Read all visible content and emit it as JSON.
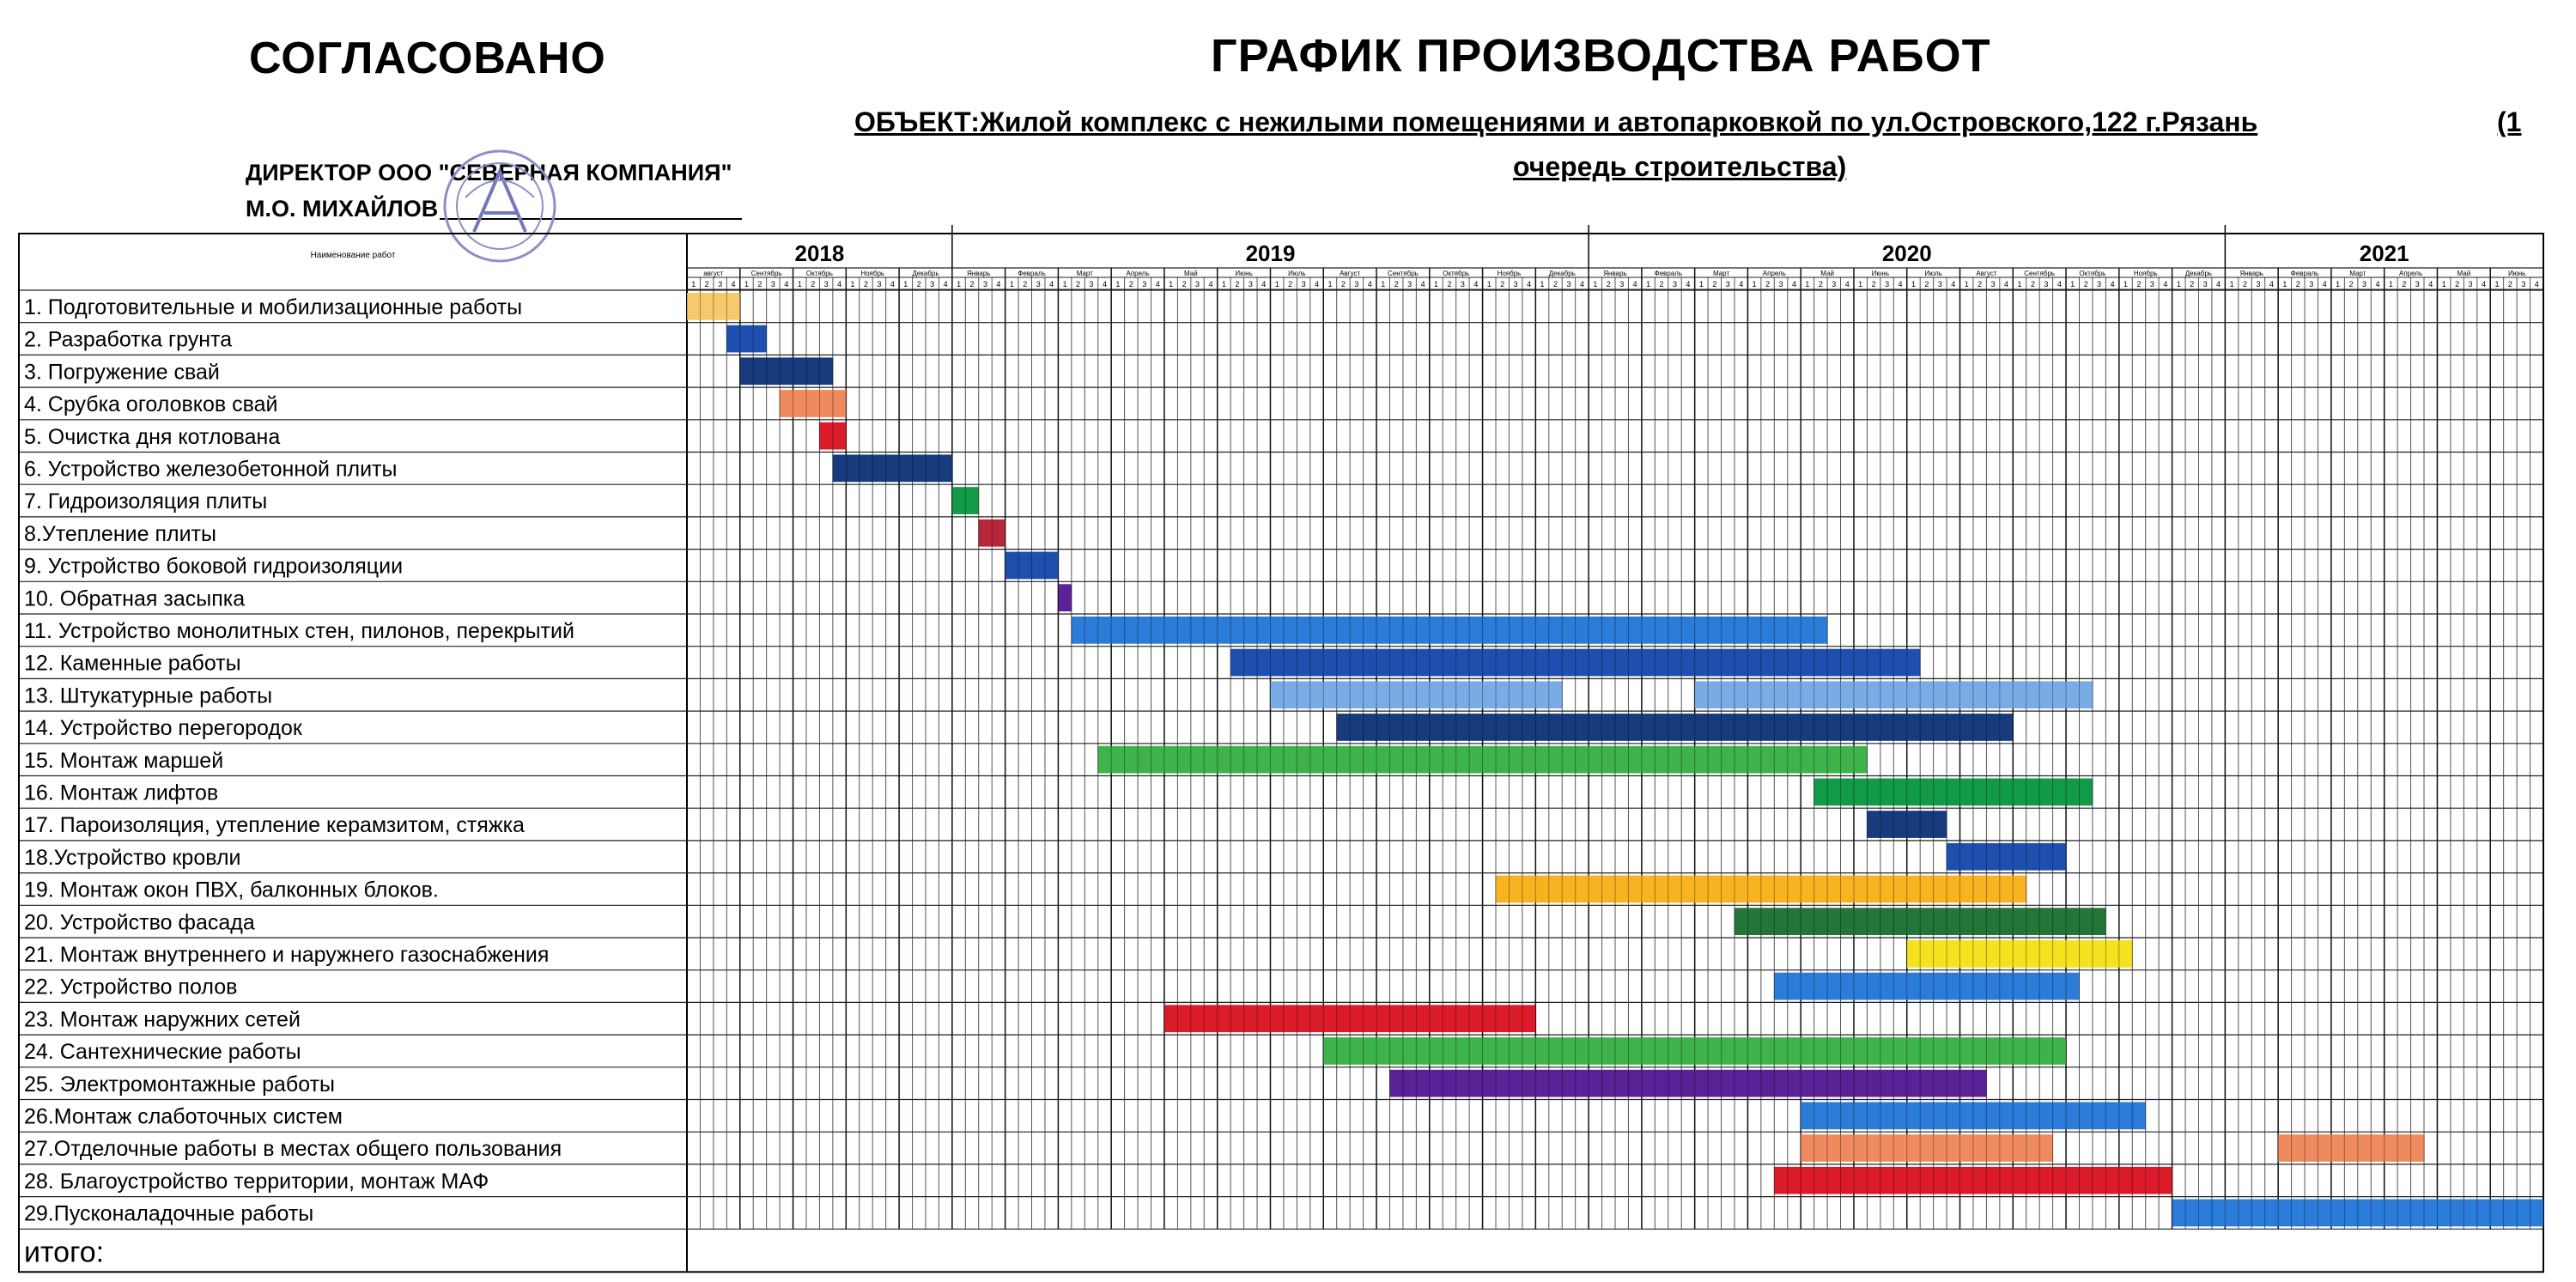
{
  "header": {
    "approved": "СОГЛАСОВАНО",
    "title": "ГРАФИК ПРОИЗВОДСТВА РАБОТ",
    "object_line1": "ОБЪЕКТ:Жилой комплекс с нежилыми помещениями и автопарковкой по ул.Островского,122 г.Рязань",
    "object_suffix": "(1",
    "object_line2": "очередь строительства)",
    "director": "ДИРЕКТОР ООО \"СЕВЕРНАЯ КОМПАНИЯ\"",
    "signer": "М.О. МИХАЙЛОВ",
    "stamp_icon": "stamp-icon"
  },
  "table": {
    "name_header": "Наименование работ",
    "total_label": "итого:"
  },
  "chart_data": {
    "type": "table",
    "years": [
      {
        "label": "2018",
        "months": 5
      },
      {
        "label": "2019",
        "months": 12
      },
      {
        "label": "2020",
        "months": 12
      },
      {
        "label": "2021",
        "months": 6
      }
    ],
    "months": [
      "август",
      "Сентябрь",
      "Октябрь",
      "Ноябрь",
      "Декабрь",
      "Январь",
      "Февраль",
      "Март",
      "Апрель",
      "Май",
      "Июнь",
      "Июль",
      "Август",
      "Сентябрь",
      "Октябрь",
      "Ноябрь",
      "Декабрь",
      "Январь",
      "Февраль",
      "Март",
      "Апрель",
      "Май",
      "Июнь",
      "Июль",
      "Август",
      "Сентябрь",
      "Октябрь",
      "Ноябрь",
      "Декабрь",
      "Январь",
      "Февраль",
      "Март",
      "Апрель",
      "Май",
      "Июнь"
    ],
    "weeks": [
      "1",
      "2",
      "3",
      "4"
    ],
    "weeks_per_month": 4,
    "tasks": [
      {
        "name": "1. Подготовительные и мобилизационные работы",
        "start": 0,
        "end": 4,
        "color": "#f7c96a"
      },
      {
        "name": "2. Разработка грунта",
        "start": 3,
        "end": 6,
        "color": "#1f4fae"
      },
      {
        "name": "3. Погружение свай",
        "start": 4,
        "end": 11,
        "color": "#173b7d"
      },
      {
        "name": "4. Срубка оголовков свай",
        "start": 7,
        "end": 12,
        "color": "#ee8a5e"
      },
      {
        "name": "5. Очистка дня котлована",
        "start": 10,
        "end": 12,
        "color": "#dc1b2a"
      },
      {
        "name": "6. Устройство железобетонной плиты",
        "start": 11,
        "end": 20,
        "color": "#173b7d"
      },
      {
        "name": "7. Гидроизоляция плиты",
        "start": 20,
        "end": 22,
        "color": "#129a48"
      },
      {
        "name": "8.Утепление плиты",
        "start": 22,
        "end": 24,
        "color": "#b8263a"
      },
      {
        "name": "9. Устройство боковой гидроизоляции",
        "start": 24,
        "end": 28,
        "color": "#1f4fae"
      },
      {
        "name": "10. Обратная засыпка",
        "start": 28,
        "end": 29,
        "color": "#5a2296"
      },
      {
        "name": "11. Устройство монолитных стен, пилонов, перекрытий",
        "start": 29,
        "end": 86,
        "color": "#2b7bd8"
      },
      {
        "name": "12. Каменные работы",
        "start": 41,
        "end": 93,
        "color": "#1f4fae"
      },
      {
        "name": "13. Штукатурные работы",
        "start": 44,
        "end": 106,
        "color": "#79ace6",
        "gap": [
          66,
          76
        ]
      },
      {
        "name": "14. Устройство перегородок",
        "start": 49,
        "end": 100,
        "color": "#173b7d"
      },
      {
        "name": "15. Монтаж маршей",
        "start": 31,
        "end": 89,
        "color": "#3db34a"
      },
      {
        "name": "16. Монтаж лифтов",
        "start": 85,
        "end": 106,
        "color": "#129a48"
      },
      {
        "name": "17. Пароизоляция, утепление керамзитом, стяжка",
        "start": 89,
        "end": 95,
        "color": "#173b7d"
      },
      {
        "name": "18.Устройство кровли",
        "start": 95,
        "end": 104,
        "color": "#1f4fae"
      },
      {
        "name": "19. Монтаж окон ПВХ, балконных блоков.",
        "start": 61,
        "end": 101,
        "color": "#f8b320"
      },
      {
        "name": "20. Устройство фасада",
        "start": 79,
        "end": 107,
        "color": "#23753a"
      },
      {
        "name": "21. Монтаж внутреннего и наружнего газоснабжения",
        "start": 92,
        "end": 109,
        "color": "#f5e21e"
      },
      {
        "name": "22. Устройство полов",
        "start": 82,
        "end": 105,
        "color": "#2b7bd8"
      },
      {
        "name": "23. Монтаж наружних сетей",
        "start": 36,
        "end": 64,
        "color": "#dc1b2a"
      },
      {
        "name": "24. Сантехнические работы",
        "start": 48,
        "end": 104,
        "color": "#3db34a"
      },
      {
        "name": "25. Электромонтажные работы",
        "start": 53,
        "end": 98,
        "color": "#5a2296"
      },
      {
        "name": "26.Монтаж слаботочных систем",
        "start": 84,
        "end": 110,
        "color": "#2b7bd8"
      },
      {
        "name": "27.Отделочные работы в местах общего пользования",
        "start": 84,
        "end": 103,
        "color": "#ee8a5e",
        "extra": [
          120,
          131
        ]
      },
      {
        "name": "28. Благоустройство территории, монтаж МАФ",
        "start": 82,
        "end": 112,
        "color": "#dc1b2a"
      },
      {
        "name": "29.Пусконаладочные работы",
        "start": 112,
        "end": 140,
        "color": "#2b7bd8"
      }
    ]
  }
}
